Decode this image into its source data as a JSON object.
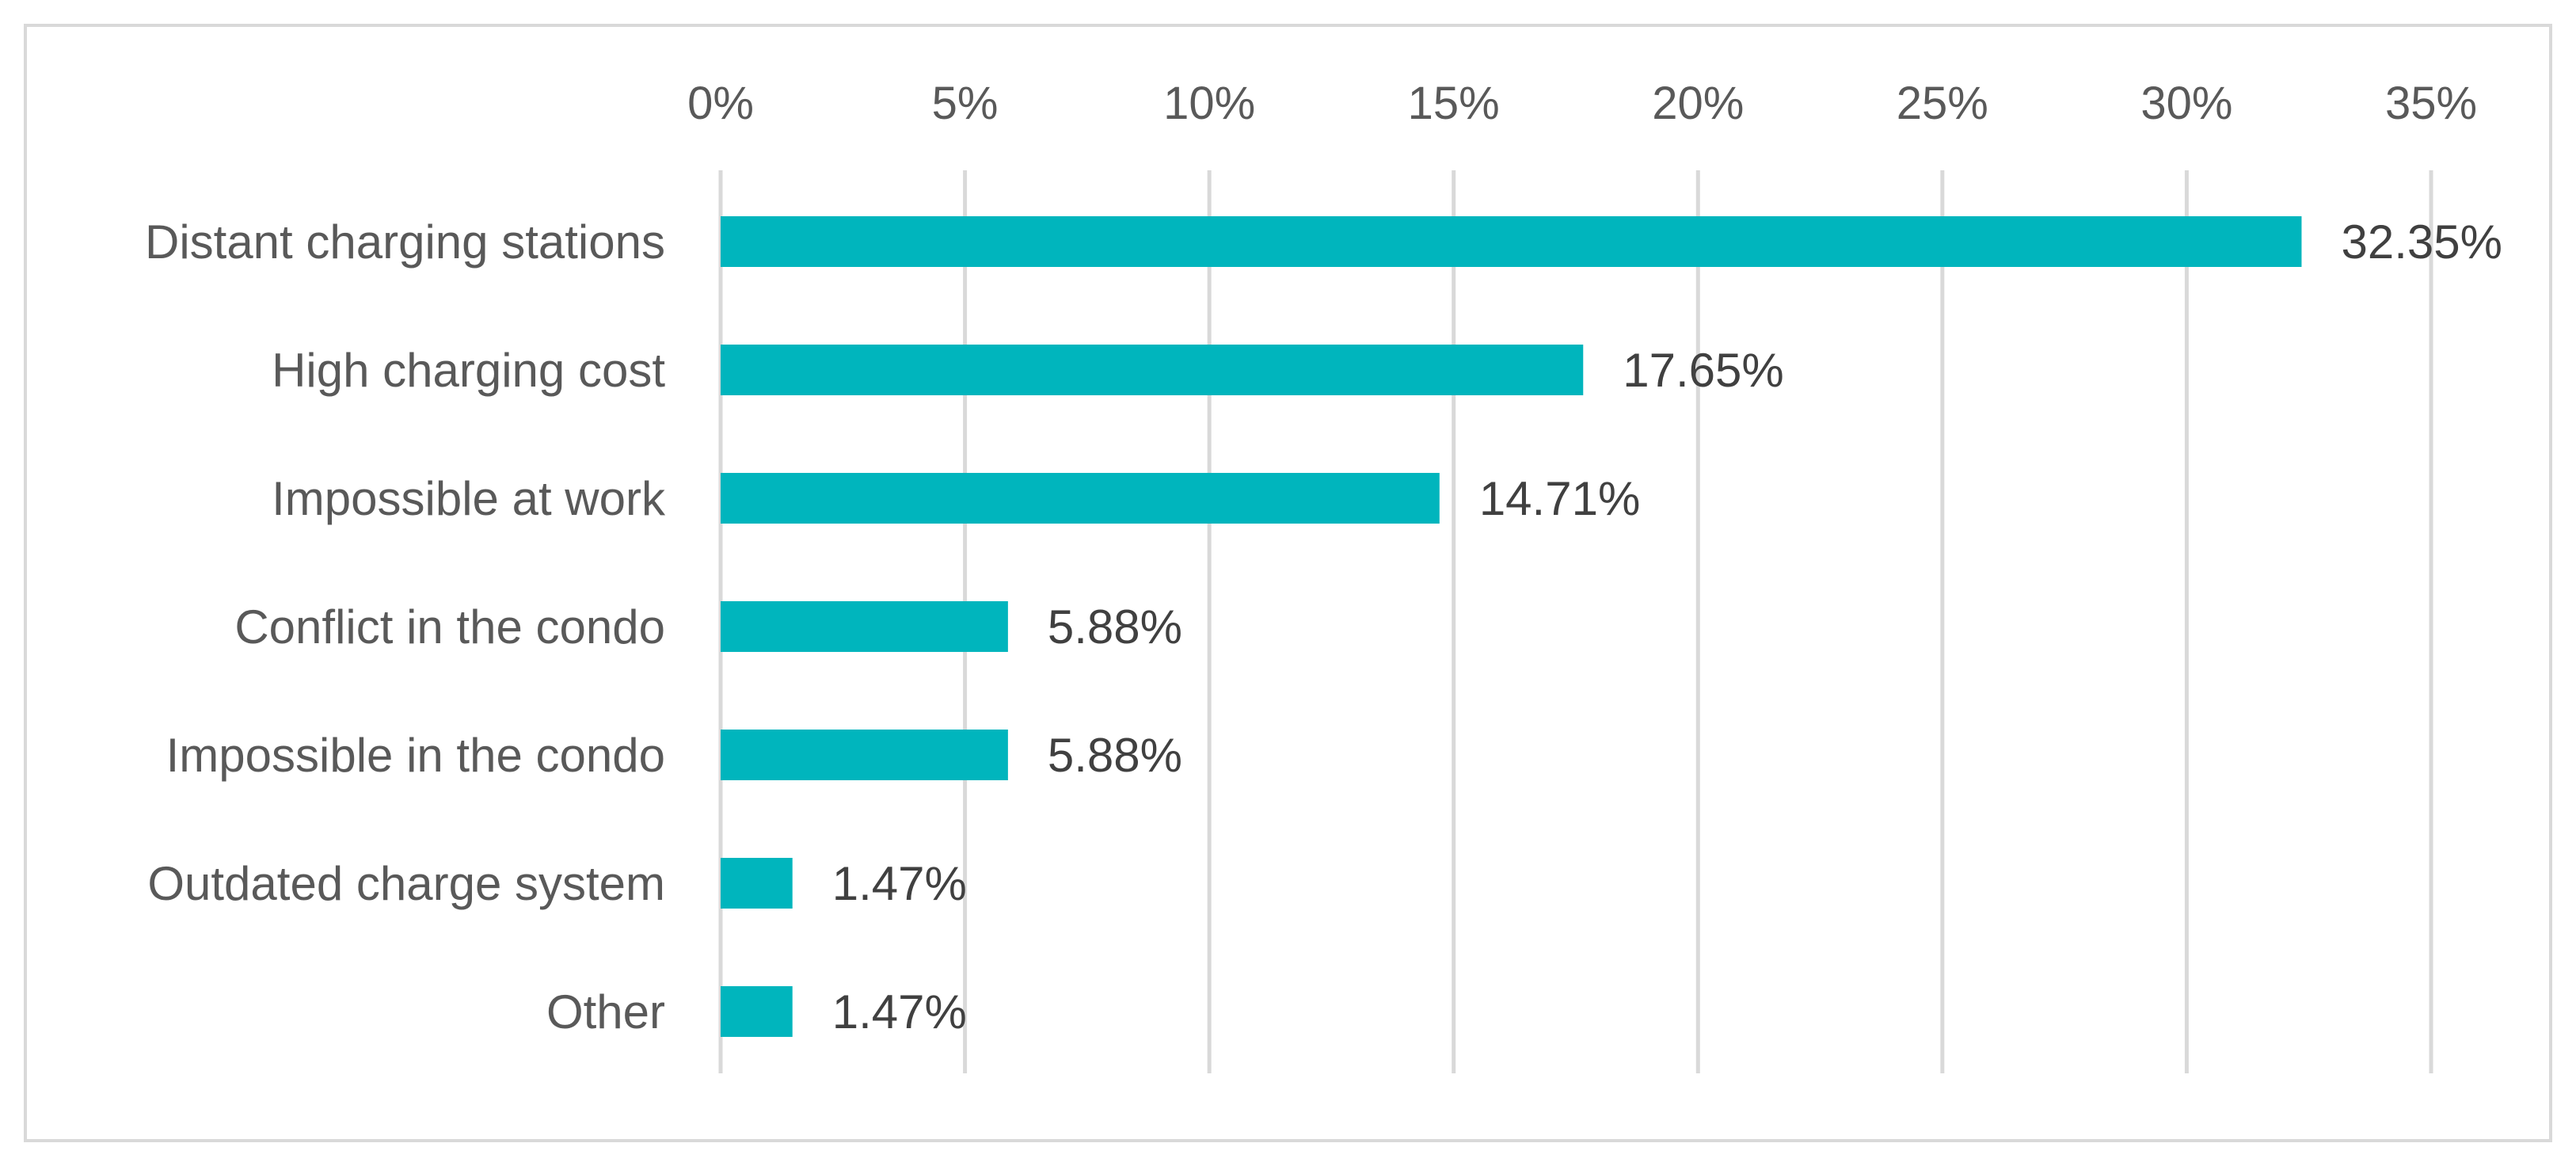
{
  "chart_data": {
    "type": "bar",
    "orientation": "horizontal",
    "categories": [
      "Distant charging stations",
      "High charging cost",
      "Impossible at work",
      "Conflict in the condo",
      "Impossible in the condo",
      "Outdated charge system",
      "Other"
    ],
    "values": [
      32.35,
      17.65,
      14.71,
      5.88,
      5.88,
      1.47,
      1.47
    ],
    "data_labels": [
      "32.35%",
      "17.65%",
      "14.71%",
      "5.88%",
      "5.88%",
      "1.47%",
      "1.47%"
    ],
    "x_ticks": [
      "0%",
      "5%",
      "10%",
      "15%",
      "20%",
      "25%",
      "30%",
      "35%"
    ],
    "xlim": [
      0,
      35
    ],
    "x_axis_position": "top",
    "grid": true,
    "legend": "none",
    "title": "",
    "xlabel": "",
    "ylabel": "",
    "bar_color": "#00b5bd",
    "grid_color": "#d9d9d9"
  }
}
